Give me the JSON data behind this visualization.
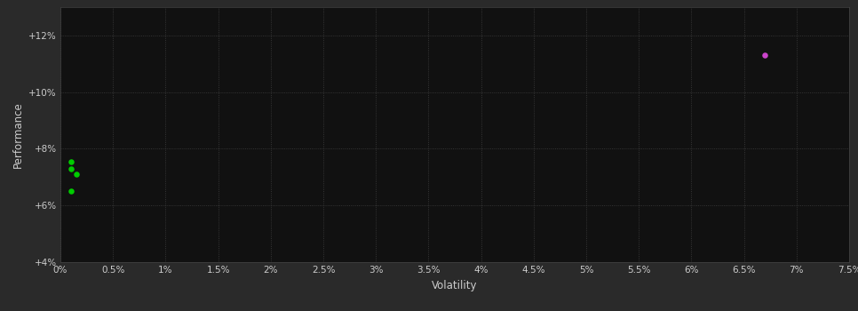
{
  "outer_bg_color": "#2a2a2a",
  "plot_bg_color": "#111111",
  "grid_color": "#404040",
  "xlabel": "Volatility",
  "ylabel": "Performance",
  "xlim": [
    0.0,
    0.075
  ],
  "ylim": [
    0.04,
    0.13
  ],
  "x_ticks": [
    0.0,
    0.005,
    0.01,
    0.015,
    0.02,
    0.025,
    0.03,
    0.035,
    0.04,
    0.045,
    0.05,
    0.055,
    0.06,
    0.065,
    0.07,
    0.075
  ],
  "x_tick_labels": [
    "0%",
    "0.5%",
    "1%",
    "1.5%",
    "2%",
    "2.5%",
    "3%",
    "3.5%",
    "4%",
    "4.5%",
    "5%",
    "5.5%",
    "6%",
    "6.5%",
    "7%",
    "7.5%"
  ],
  "y_ticks": [
    0.04,
    0.06,
    0.08,
    0.1,
    0.12
  ],
  "y_tick_labels": [
    "+4%",
    "+6%",
    "+8%",
    "+10%",
    "+12%"
  ],
  "green_points": [
    [
      0.001,
      0.0755
    ],
    [
      0.001,
      0.073
    ],
    [
      0.0015,
      0.071
    ],
    [
      0.001,
      0.065
    ]
  ],
  "magenta_points": [
    [
      0.067,
      0.113
    ]
  ],
  "green_color": "#00cc00",
  "magenta_color": "#cc44cc",
  "tick_color": "#cccccc",
  "label_color": "#cccccc",
  "axis_color": "#444444",
  "tick_fontsize": 7.5,
  "label_fontsize": 8.5
}
